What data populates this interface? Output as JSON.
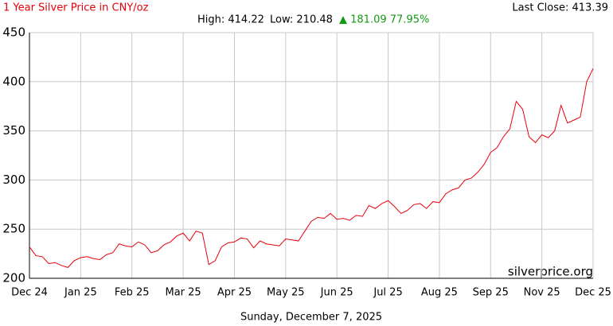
{
  "chart_data": {
    "type": "line",
    "title": "1 Year Silver Price in CNY/oz",
    "last_close": "Last Close: 413.39",
    "high": "High: 414.22",
    "low": "Low: 210.48",
    "change": "▲ 181.09 77.95%",
    "watermark": "silverprice.org",
    "footer": "Sunday, December 7, 2025",
    "categories": [
      "Dec 24",
      null,
      null,
      null,
      null,
      null,
      null,
      null,
      "Jan 25",
      null,
      null,
      null,
      null,
      null,
      null,
      null,
      "Feb 25",
      null,
      null,
      null,
      null,
      null,
      null,
      null,
      "Mar 25",
      null,
      null,
      null,
      null,
      null,
      null,
      null,
      "Apr 25",
      null,
      null,
      null,
      null,
      null,
      null,
      null,
      "May 25",
      null,
      null,
      null,
      null,
      null,
      null,
      null,
      "Jun 25",
      null,
      null,
      null,
      null,
      null,
      null,
      null,
      "Jul 25",
      null,
      null,
      null,
      null,
      null,
      null,
      null,
      "Aug 25",
      null,
      null,
      null,
      null,
      null,
      null,
      null,
      "Sep 25",
      null,
      null,
      null,
      null,
      null,
      null,
      null,
      "Nov 25",
      null,
      null,
      null,
      null,
      null,
      null,
      null,
      "Dec 25"
    ],
    "series": [
      {
        "name": "Silver",
        "color": "#e8000b",
        "values": [
          232,
          223,
          222,
          215,
          216,
          213,
          211,
          218,
          221,
          222,
          220,
          219,
          224,
          226,
          235,
          233,
          232,
          237,
          234,
          226,
          228,
          234,
          237,
          243,
          246,
          238,
          248,
          246,
          214,
          218,
          232,
          236,
          237,
          241,
          240,
          231,
          238,
          235,
          234,
          233,
          240,
          239,
          238,
          248,
          258,
          262,
          261,
          266,
          260,
          261,
          259,
          264,
          263,
          274,
          271,
          276,
          279,
          273,
          266,
          269,
          275,
          276,
          271,
          278,
          277,
          286,
          290,
          292,
          300,
          302,
          308,
          316,
          328,
          333,
          344,
          352,
          380,
          372,
          344,
          338,
          346,
          343,
          350,
          376,
          358,
          361,
          364,
          400,
          413.39
        ]
      }
    ],
    "ylim": [
      200,
      450
    ],
    "yticks": [
      200,
      250,
      300,
      350,
      400,
      450
    ],
    "grid": true
  }
}
